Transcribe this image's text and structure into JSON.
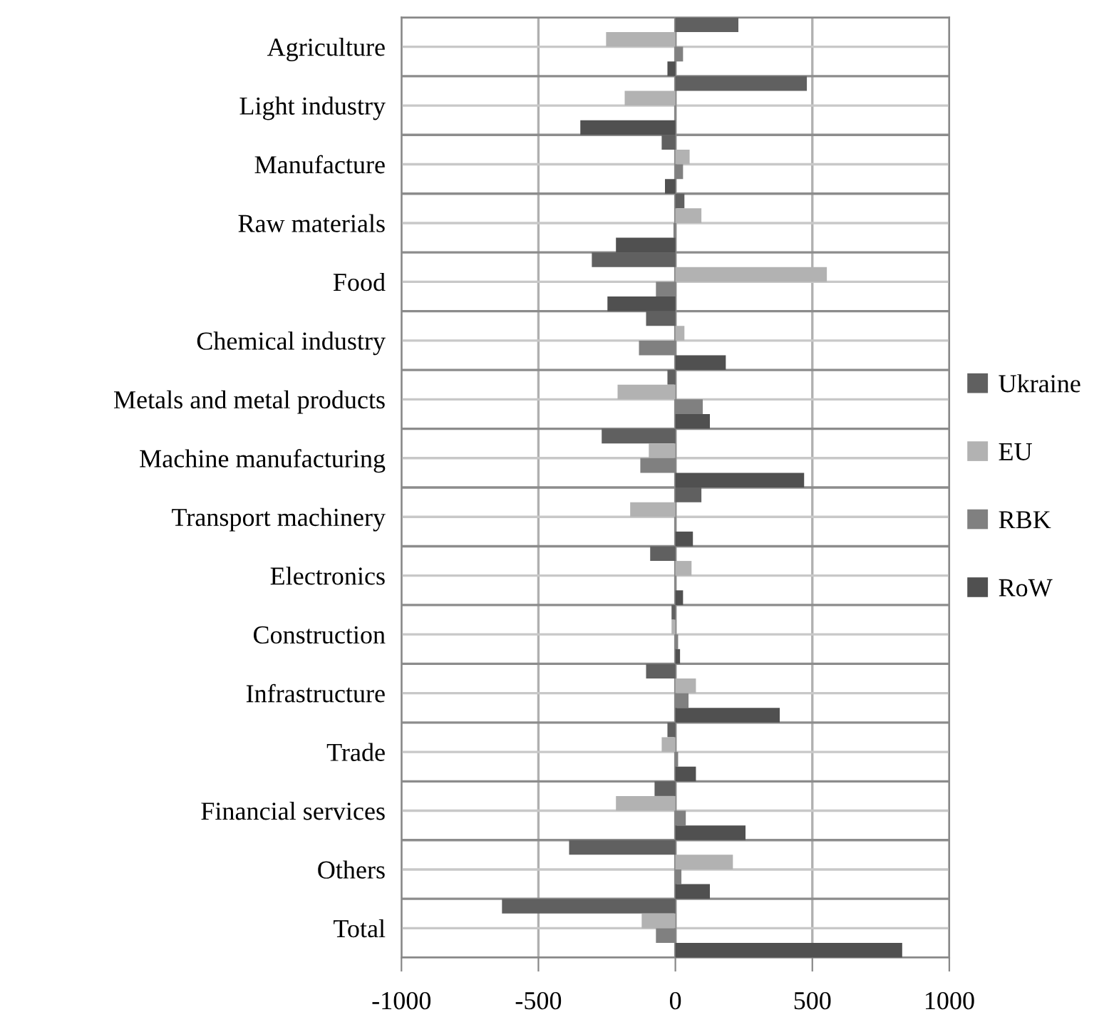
{
  "chart_data": {
    "type": "bar",
    "orientation": "horizontal",
    "categories": [
      "Agriculture",
      "Light industry",
      "Manufacture",
      "Raw materials",
      "Food",
      "Chemical industry",
      "Metals and metal products",
      "Machine manufacturing",
      "Transport machinery",
      "Electronics",
      "Construction",
      "Infrastructure",
      "Trade",
      "Financial services",
      "Others",
      "Total"
    ],
    "series": [
      {
        "name": "Ukraine",
        "color": "#606060",
        "values": [
          230,
          480,
          -50,
          33,
          -305,
          -107,
          -29,
          -269,
          95,
          -92,
          -14,
          -107,
          -29,
          -76,
          -388,
          -633
        ]
      },
      {
        "name": "EU",
        "color": "#b2b2b2",
        "values": [
          -253,
          -185,
          52,
          95,
          553,
          33,
          -211,
          -97,
          -165,
          59,
          -14,
          75,
          -50,
          -217,
          210,
          -123
        ]
      },
      {
        "name": "RBK",
        "color": "#808080",
        "values": [
          28,
          0,
          28,
          -7,
          -71,
          -133,
          100,
          -128,
          0,
          0,
          10,
          48,
          10,
          38,
          22,
          -71
        ]
      },
      {
        "name": "RoW",
        "color": "#505050",
        "values": [
          -29,
          -347,
          -38,
          -217,
          -248,
          184,
          126,
          470,
          64,
          28,
          17,
          381,
          75,
          256,
          126,
          828
        ]
      }
    ],
    "xlim": [
      -1000,
      1000
    ],
    "xticks": [
      -1000,
      -500,
      0,
      500,
      1000
    ],
    "grid": true,
    "legend": "right"
  }
}
